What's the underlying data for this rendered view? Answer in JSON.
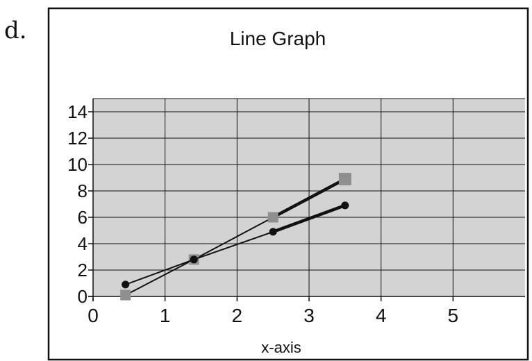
{
  "panel_label": "d.",
  "chart_data": {
    "type": "line",
    "title": "Line Graph",
    "xlabel": "x-axis",
    "ylabel": "",
    "xlim": [
      0,
      6
    ],
    "ylim": [
      0,
      15
    ],
    "xticks": [
      0,
      1,
      2,
      3,
      4,
      5
    ],
    "yticks": [
      0,
      2,
      4,
      6,
      8,
      10,
      12,
      14
    ],
    "grid": true,
    "plot_background": "#d3d3d3",
    "series": [
      {
        "marker": "square",
        "color": "#8f8f8f",
        "line_color": "#111111",
        "points": [
          {
            "x": 0.45,
            "y": 0.1
          },
          {
            "x": 1.4,
            "y": 2.8
          },
          {
            "x": 2.5,
            "y": 6.0
          },
          {
            "x": 3.5,
            "y": 8.9
          }
        ]
      },
      {
        "marker": "circle",
        "color": "#111111",
        "line_color": "#111111",
        "points": [
          {
            "x": 0.45,
            "y": 0.9
          },
          {
            "x": 1.4,
            "y": 2.8
          },
          {
            "x": 2.5,
            "y": 4.9
          },
          {
            "x": 3.5,
            "y": 6.9
          }
        ]
      }
    ]
  }
}
